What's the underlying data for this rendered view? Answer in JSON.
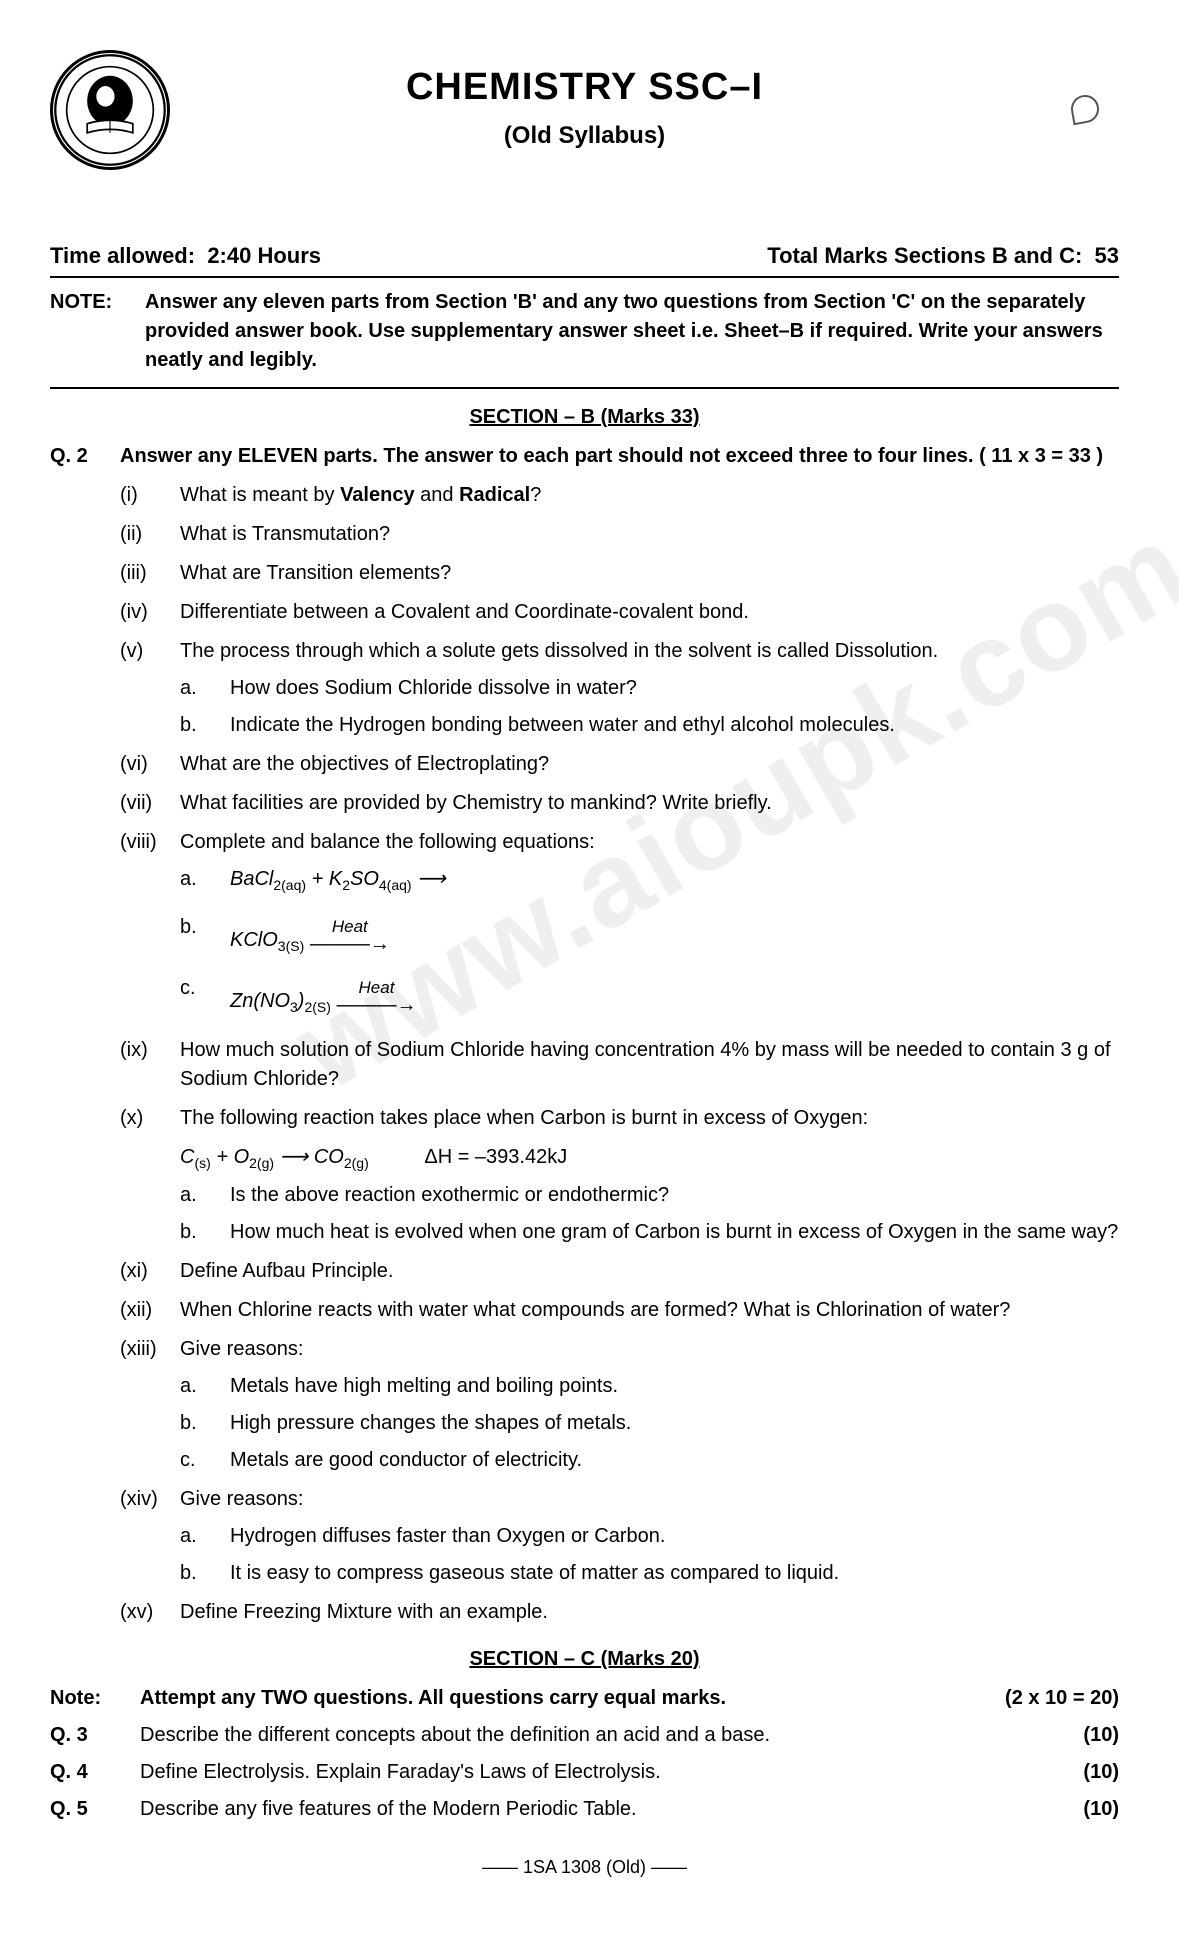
{
  "header": {
    "title": "CHEMISTRY SSC–I",
    "subtitle": "(Old Syllabus)",
    "watermark": "www.aioupk.com"
  },
  "meta": {
    "time_label": "Time allowed:",
    "time_value": "2:40 Hours",
    "marks_label": "Total Marks Sections B and C:",
    "marks_value": "53"
  },
  "note": {
    "label": "NOTE:",
    "text": "Answer any eleven parts from Section 'B' and any two questions from Section 'C' on the separately provided answer book. Use supplementary answer sheet i.e. Sheet–B if required. Write your answers neatly and legibly."
  },
  "sectionB": {
    "heading": "SECTION – B (Marks 33)",
    "q_label": "Q. 2",
    "q_instr": "Answer any ELEVEN parts. The answer to each part should not exceed three to four lines.  ( 11 x 3 = 33 )",
    "parts": {
      "i": "What is meant by <b>Valency</b> and <b>Radical</b>?",
      "ii": "What is Transmutation?",
      "iii": "What are Transition elements?",
      "iv": "Differentiate between a Covalent and Coordinate-covalent bond.",
      "v": "The process through which a solute gets dissolved in the solvent is called Dissolution.",
      "v_a": "How does Sodium Chloride dissolve in water?",
      "v_b": "Indicate the Hydrogen bonding between water and ethyl alcohol molecules.",
      "vi": "What are the objectives of Electroplating?",
      "vii": "What facilities are provided by Chemistry to mankind? Write briefly.",
      "viii": "Complete and balance the following equations:",
      "ix": "How much solution of Sodium Chloride having concentration 4% by mass will be needed to contain 3 g of Sodium Chloride?",
      "x": "The following reaction takes place when Carbon is burnt in excess of Oxygen:",
      "x_a": "Is the above reaction exothermic or endothermic?",
      "x_b": "How much heat is evolved when one gram of Carbon is burnt in excess of Oxygen in the same way?",
      "xi": "Define Aufbau Principle.",
      "xii": "When Chlorine reacts with water what compounds are formed? What is Chlorination of water?",
      "xiii": "Give reasons:",
      "xiii_a": "Metals have high melting and boiling points.",
      "xiii_b": "High pressure changes the shapes of metals.",
      "xiii_c": "Metals are good conductor of electricity.",
      "xiv": "Give reasons:",
      "xiv_a": "Hydrogen diffuses faster than Oxygen or Carbon.",
      "xiv_b": "It is easy to compress gaseous state of matter as compared to liquid.",
      "xv": "Define Freezing Mixture with an example."
    },
    "eq": {
      "viii_a": "BaCl<sub>2(aq)</sub> + K<sub>2</sub>SO<sub>4(aq)</sub> ⟶",
      "viii_b_l": "KClO<sub>3(S)</sub>",
      "viii_c_l": "Zn(NO<sub>3</sub>)<sub>2(S)</sub>",
      "heat": "Heat",
      "x_eq": "C<sub>(s)</sub> + O<sub>2(g)</sub> ⟶ CO<sub>2(g)</sub>",
      "x_dh": "ΔH = –393.42kJ"
    }
  },
  "sectionC": {
    "heading": "SECTION – C (Marks 20)",
    "note_label": "Note:",
    "note_text": "Attempt any TWO questions. All questions carry equal marks.",
    "note_marks": "(2 x 10 = 20)",
    "q3_label": "Q. 3",
    "q3_text": "Describe the different concepts about the definition an acid and a base.",
    "q3_marks": "(10)",
    "q4_label": "Q. 4",
    "q4_text": "Define Electrolysis. Explain Faraday's Laws of Electrolysis.",
    "q4_marks": "(10)",
    "q5_label": "Q. 5",
    "q5_text": "Describe any five features of the Modern Periodic Table.",
    "q5_marks": "(10)"
  },
  "footer": {
    "code": "—— 1SA 1308 (Old) ——"
  }
}
